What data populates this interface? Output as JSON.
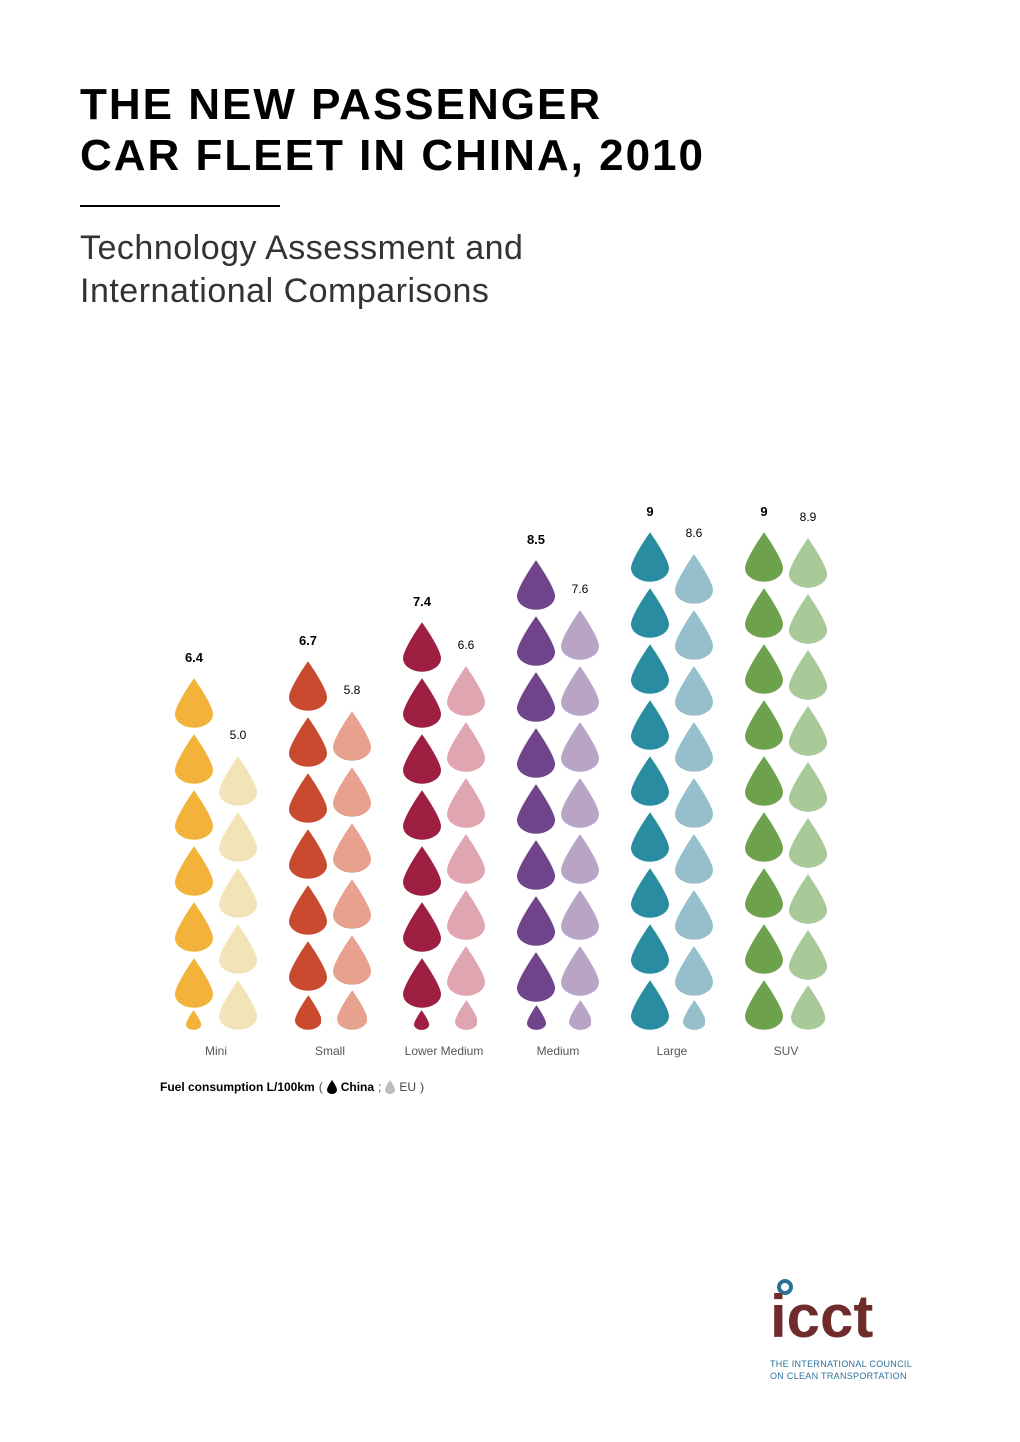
{
  "title_line1": "THE NEW PASSENGER",
  "title_line2": "CAR FLEET IN CHINA, 2010",
  "subtitle_line1": "Technology Assessment and",
  "subtitle_line2": "International Comparisons",
  "chart": {
    "type": "infographic",
    "unit_height": 56,
    "drop_width": 38,
    "drop_height": 50,
    "column_spacing": 114,
    "categories": [
      {
        "label": "Mini",
        "china": 6.4,
        "eu": 5.0,
        "china_color": "#f3b33b",
        "eu_color": "#f2e3b8"
      },
      {
        "label": "Small",
        "china": 6.7,
        "eu": 5.8,
        "china_color": "#c94a2f",
        "eu_color": "#e6a18f"
      },
      {
        "label": "Lower Medium",
        "china": 7.4,
        "eu": 6.6,
        "china_color": "#9e1f42",
        "eu_color": "#dfa5b0"
      },
      {
        "label": "Medium",
        "china": 8.5,
        "eu": 7.6,
        "china_color": "#6f448a",
        "eu_color": "#b9a4c6"
      },
      {
        "label": "Large",
        "china": 9.0,
        "eu": 8.6,
        "china_color": "#2a8ca0",
        "eu_color": "#95bfcb"
      },
      {
        "label": "SUV",
        "china": 9.0,
        "eu": 8.9,
        "china_color": "#6ea14c",
        "eu_color": "#a9c998"
      }
    ],
    "value_display": {
      "Large_china": "9",
      "SUV_china": "9"
    }
  },
  "legend": {
    "prefix": "Fuel consumption L/100km",
    "china_label": "China",
    "eu_label": "EU",
    "china_swatch": "#000000",
    "eu_swatch": "#bdbdbd"
  },
  "logo": {
    "text_line1": "THE INTERNATIONAL COUNCIL",
    "text_line2": "ON CLEAN TRANSPORTATION",
    "icct_color": "#702c2b",
    "dot_color": "#2b7199"
  },
  "styling": {
    "background_color": "#ffffff",
    "title_color": "#000000",
    "subtitle_color": "#333333",
    "label_color": "#555555"
  }
}
